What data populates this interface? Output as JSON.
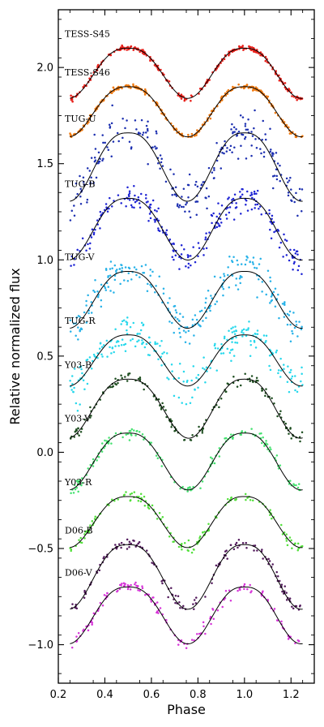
{
  "chart_data": {
    "type": "scatter",
    "xlabel": "Phase",
    "ylabel": "Relative normalized flux",
    "xlim": [
      0.2,
      1.3
    ],
    "ylim": [
      -1.2,
      2.3
    ],
    "xticks": [
      0.2,
      0.4,
      0.6,
      0.8,
      1.0,
      1.2
    ],
    "xtick_labels": [
      "0.2",
      "0.4",
      "0.6",
      "0.8",
      "1.0",
      "1.2"
    ],
    "yticks": [
      -1.0,
      -0.5,
      0.0,
      0.5,
      1.0,
      1.5,
      2.0
    ],
    "ytick_labels": [
      "−1.0",
      "−0.5",
      "0.0",
      "0.5",
      "1.0",
      "1.5",
      "2.0"
    ],
    "grid": false,
    "model_color": "#000000",
    "series": [
      {
        "name": "TESS-S45",
        "color": "#e8201a",
        "offset": 2.1,
        "amp1": 0.235,
        "amp2": 0.285,
        "scatter": 0.006
      },
      {
        "name": "TESS-S46",
        "color": "#f07a10",
        "offset": 1.9,
        "amp1": 0.235,
        "amp2": 0.285,
        "scatter": 0.006
      },
      {
        "name": "TUG-U",
        "color": "#1c2fb0",
        "offset": 1.66,
        "amp1": 0.33,
        "amp2": 0.38,
        "scatter": 0.055
      },
      {
        "name": "TUG-B",
        "color": "#1e24d4",
        "offset": 1.32,
        "amp1": 0.28,
        "amp2": 0.36,
        "scatter": 0.035
      },
      {
        "name": "TUG-V",
        "color": "#27b2e8",
        "offset": 0.94,
        "amp1": 0.27,
        "amp2": 0.32,
        "scatter": 0.045
      },
      {
        "name": "TUG-R",
        "color": "#27d8ec",
        "offset": 0.61,
        "amp1": 0.24,
        "amp2": 0.29,
        "scatter": 0.045
      },
      {
        "name": "Y03-B",
        "color": "#1d4d1f",
        "offset": 0.38,
        "amp1": 0.25,
        "amp2": 0.36,
        "scatter": 0.015
      },
      {
        "name": "Y03-V",
        "color": "#45e270",
        "offset": 0.1,
        "amp1": 0.26,
        "amp2": 0.33,
        "scatter": 0.015
      },
      {
        "name": "Y03-R",
        "color": "#52e03a",
        "offset": -0.23,
        "amp1": 0.24,
        "amp2": 0.29,
        "scatter": 0.015
      },
      {
        "name": "D06-B",
        "color": "#521a5c",
        "offset": -0.48,
        "amp1": 0.3,
        "amp2": 0.37,
        "scatter": 0.015
      },
      {
        "name": "D06-V",
        "color": "#d634d8",
        "offset": -0.7,
        "amp1": 0.26,
        "amp2": 0.33,
        "scatter": 0.015
      }
    ]
  }
}
